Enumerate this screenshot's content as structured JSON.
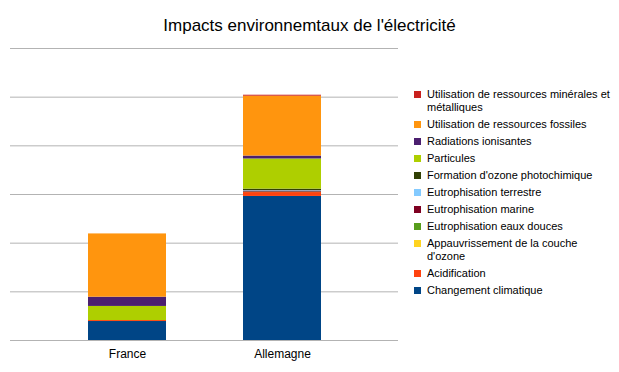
{
  "chart_data": {
    "type": "bar",
    "title": "Impacts environnemtaux de l'électricité",
    "categories": [
      "France",
      "Allemagne"
    ],
    "stacked": true,
    "grid": true,
    "legend": "right",
    "tick_labels": "x",
    "ylim": [
      0,
      6
    ],
    "yticks": [
      0,
      1,
      2,
      3,
      4,
      5,
      6
    ],
    "series": [
      {
        "name": "Changement climatique",
        "color": "#004586",
        "values": [
          0.39,
          2.96
        ]
      },
      {
        "name": "Acidification",
        "color": "#ff420e",
        "values": [
          0.02,
          0.08
        ]
      },
      {
        "name": "Appauvrissement de la couche d'ozone",
        "color": "#ffd320",
        "values": [
          0,
          0
        ]
      },
      {
        "name": "Eutrophisation eaux douces",
        "color": "#579d1c",
        "values": [
          0,
          0.01
        ]
      },
      {
        "name": "Eutrophisation marine",
        "color": "#7e0021",
        "values": [
          0,
          0.02
        ]
      },
      {
        "name": "Eutrophisation terrestre",
        "color": "#83caff",
        "values": [
          0,
          0.01
        ]
      },
      {
        "name": "Formation d'ozone photochimique",
        "color": "#314004",
        "values": [
          0,
          0.03
        ]
      },
      {
        "name": "Particules",
        "color": "#aecf00",
        "values": [
          0.29,
          0.62
        ]
      },
      {
        "name": "Radiations ionisantes",
        "color": "#4b1f6f",
        "values": [
          0.19,
          0.06
        ]
      },
      {
        "name": "Utilisation de ressources fossiles",
        "color": "#ff950e",
        "values": [
          1.3,
          1.23
        ]
      },
      {
        "name": "Utilisation de ressources minérales et métalliques",
        "color": "#c9211e",
        "values": [
          0,
          0.02
        ]
      }
    ]
  }
}
